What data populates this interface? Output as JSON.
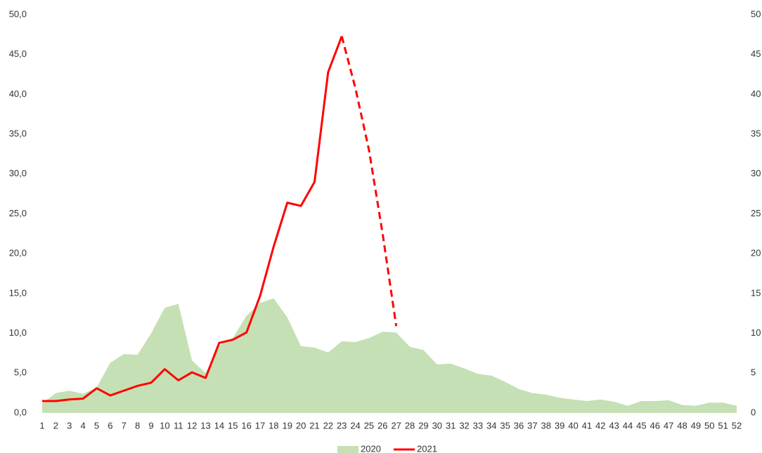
{
  "chart_data": {
    "type": "area-line",
    "x": [
      1,
      2,
      3,
      4,
      5,
      6,
      7,
      8,
      9,
      10,
      11,
      12,
      13,
      14,
      15,
      16,
      17,
      18,
      19,
      20,
      21,
      22,
      23,
      24,
      25,
      26,
      27,
      28,
      29,
      30,
      31,
      32,
      33,
      34,
      35,
      36,
      37,
      38,
      39,
      40,
      41,
      42,
      43,
      44,
      45,
      46,
      47,
      48,
      49,
      50,
      51,
      52
    ],
    "xlim": [
      1,
      52
    ],
    "ylim": [
      0,
      50
    ],
    "yticks": [
      {
        "value": 0,
        "label": "0,0"
      },
      {
        "value": 5,
        "label": "5,0"
      },
      {
        "value": 10,
        "label": "10,0"
      },
      {
        "value": 15,
        "label": "15,0"
      },
      {
        "value": 20,
        "label": "20,0"
      },
      {
        "value": 25,
        "label": "25,0"
      },
      {
        "value": 30,
        "label": "30,0"
      },
      {
        "value": 35,
        "label": "35,0"
      },
      {
        "value": 40,
        "label": "40,0"
      },
      {
        "value": 45,
        "label": "45,0"
      },
      {
        "value": 50,
        "label": "50,0"
      }
    ],
    "y2lim": [
      0,
      50
    ],
    "y2ticks": [
      0,
      5,
      10,
      15,
      20,
      25,
      30,
      35,
      40,
      45,
      50
    ],
    "legend": "bottom",
    "series": [
      {
        "name": "2020",
        "type": "area",
        "color": "#c5e0b4",
        "values": [
          1.2,
          2.5,
          2.8,
          2.4,
          3.2,
          6.3,
          7.4,
          7.3,
          10.0,
          13.2,
          13.7,
          6.6,
          5.0,
          8.5,
          9.4,
          12.2,
          13.8,
          14.4,
          12.0,
          8.4,
          8.2,
          7.6,
          9.0,
          8.9,
          9.4,
          10.2,
          10.1,
          8.3,
          7.9,
          6.1,
          6.2,
          5.6,
          4.9,
          4.7,
          3.9,
          3.0,
          2.5,
          2.3,
          1.9,
          1.7,
          1.5,
          1.7,
          1.4,
          0.9,
          1.5,
          1.5,
          1.6,
          1.0,
          0.9,
          1.3,
          1.3,
          0.9
        ]
      },
      {
        "name": "2021",
        "type": "line",
        "color": "#ff0000",
        "dash_from": 23,
        "values": [
          1.5,
          1.5,
          1.7,
          1.8,
          3.1,
          2.2,
          2.8,
          3.4,
          3.8,
          5.5,
          4.1,
          5.1,
          4.4,
          8.8,
          9.2,
          10.1,
          14.7,
          20.9,
          26.4,
          26.0,
          29.0,
          42.8,
          47.3,
          40.8,
          33.0,
          22.5,
          10.9,
          null,
          null,
          null,
          null,
          null,
          null,
          null,
          null,
          null,
          null,
          null,
          null,
          null,
          null,
          null,
          null,
          null,
          null,
          null,
          null,
          null,
          null,
          null,
          null,
          null
        ]
      }
    ]
  }
}
